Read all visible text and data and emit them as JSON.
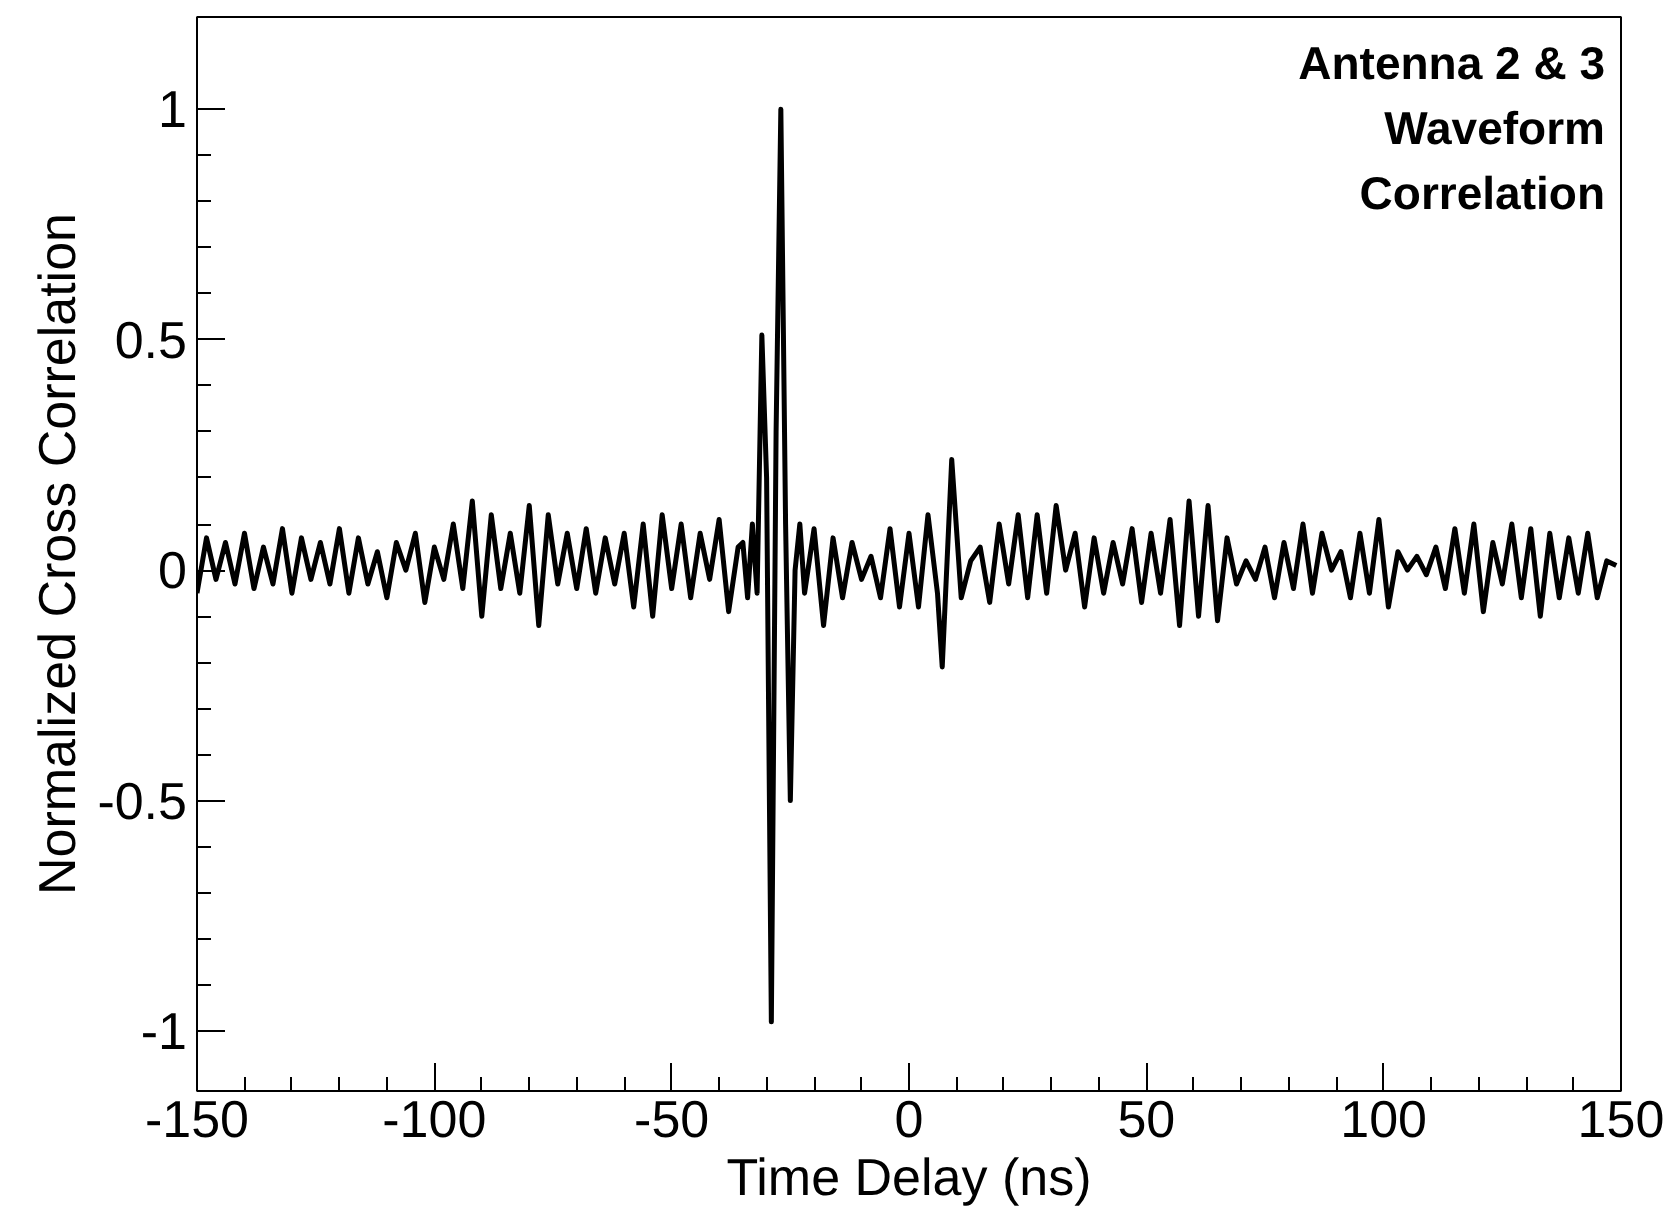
{
  "chart_data": {
    "type": "line",
    "title": "Antenna 2 & 3\nWaveform\nCorrelation",
    "xlabel": "Time Delay (ns)",
    "ylabel": "Normalized Cross Correlation",
    "xlim": [
      -150,
      150
    ],
    "ylim": [
      -1.13,
      1.2
    ],
    "xticks": [
      -150,
      -100,
      -50,
      0,
      50,
      100,
      150
    ],
    "yticks": [
      -1,
      -0.5,
      0,
      0.5,
      1
    ],
    "grid": false,
    "marker": "none",
    "line_style": "solid",
    "x": [
      -150,
      -148,
      -146,
      -144,
      -142,
      -140,
      -138,
      -136,
      -134,
      -132,
      -130,
      -128,
      -126,
      -124,
      -122,
      -120,
      -118,
      -116,
      -114,
      -112,
      -110,
      -108,
      -106,
      -104,
      -102,
      -100,
      -98,
      -96,
      -94,
      -92,
      -90,
      -88,
      -86,
      -84,
      -82,
      -80,
      -78,
      -76,
      -74,
      -72,
      -70,
      -68,
      -66,
      -64,
      -62,
      -60,
      -58,
      -56,
      -54,
      -52,
      -50,
      -48,
      -46,
      -44,
      -42,
      -40,
      -38,
      -36,
      -35,
      -34,
      -33,
      -32,
      -31,
      -30,
      -29,
      -28,
      -27,
      -26,
      -25,
      -24,
      -23,
      -22,
      -20,
      -18,
      -16,
      -14,
      -12,
      -10,
      -8,
      -6,
      -4,
      -2,
      0,
      2,
      4,
      6,
      7,
      9,
      11,
      13,
      15,
      17,
      19,
      21,
      23,
      25,
      27,
      29,
      31,
      33,
      35,
      37,
      39,
      41,
      43,
      45,
      47,
      49,
      51,
      53,
      55,
      57,
      59,
      61,
      63,
      65,
      67,
      69,
      71,
      73,
      75,
      77,
      79,
      81,
      83,
      85,
      87,
      89,
      91,
      93,
      95,
      97,
      99,
      101,
      103,
      105,
      107,
      109,
      111,
      113,
      115,
      117,
      119,
      121,
      123,
      125,
      127,
      129,
      131,
      133,
      135,
      137,
      139,
      141,
      143,
      145,
      147,
      149
    ],
    "series": [
      {
        "color": "#000000",
        "values": [
          -0.05,
          0.07,
          -0.02,
          0.06,
          -0.03,
          0.08,
          -0.04,
          0.05,
          -0.03,
          0.09,
          -0.05,
          0.07,
          -0.02,
          0.06,
          -0.03,
          0.09,
          -0.05,
          0.07,
          -0.03,
          0.04,
          -0.06,
          0.06,
          0.0,
          0.08,
          -0.07,
          0.05,
          -0.02,
          0.1,
          -0.04,
          0.15,
          -0.1,
          0.12,
          -0.04,
          0.08,
          -0.05,
          0.14,
          -0.12,
          0.12,
          -0.03,
          0.08,
          -0.04,
          0.09,
          -0.05,
          0.07,
          -0.03,
          0.08,
          -0.08,
          0.1,
          -0.1,
          0.12,
          -0.04,
          0.1,
          -0.06,
          0.08,
          -0.02,
          0.11,
          -0.09,
          0.05,
          0.06,
          -0.06,
          0.1,
          -0.05,
          0.51,
          0.2,
          -0.98,
          0.3,
          1.0,
          0.1,
          -0.5,
          0.0,
          0.1,
          -0.05,
          0.09,
          -0.12,
          0.07,
          -0.06,
          0.06,
          -0.02,
          0.03,
          -0.06,
          0.09,
          -0.08,
          0.08,
          -0.08,
          0.12,
          -0.05,
          -0.21,
          0.24,
          -0.06,
          0.02,
          0.05,
          -0.07,
          0.1,
          -0.03,
          0.12,
          -0.06,
          0.12,
          -0.05,
          0.14,
          0.0,
          0.08,
          -0.08,
          0.07,
          -0.05,
          0.06,
          -0.03,
          0.09,
          -0.07,
          0.08,
          -0.05,
          0.11,
          -0.12,
          0.15,
          -0.1,
          0.14,
          -0.11,
          0.07,
          -0.03,
          0.02,
          -0.02,
          0.05,
          -0.06,
          0.06,
          -0.04,
          0.1,
          -0.05,
          0.08,
          0.0,
          0.04,
          -0.06,
          0.08,
          -0.05,
          0.11,
          -0.08,
          0.04,
          0.0,
          0.03,
          -0.01,
          0.05,
          -0.04,
          0.09,
          -0.05,
          0.1,
          -0.09,
          0.06,
          -0.03,
          0.1,
          -0.06,
          0.09,
          -0.1,
          0.08,
          -0.06,
          0.07,
          -0.05,
          0.08,
          -0.06,
          0.02,
          0.01
        ]
      }
    ]
  }
}
